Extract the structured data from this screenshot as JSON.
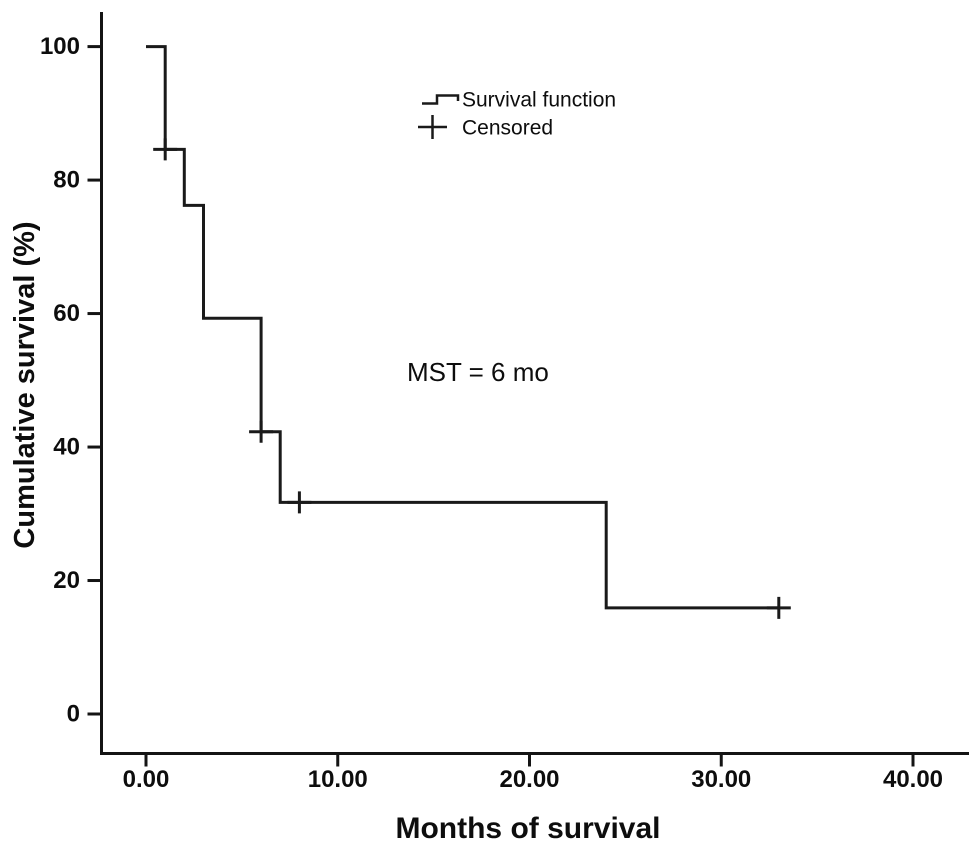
{
  "chart_data": {
    "type": "line",
    "subtype": "kaplan-meier-step",
    "title": "",
    "xlabel": "Months of survival",
    "ylabel": "Cumulative survival (%)",
    "xlim": [
      0,
      43
    ],
    "ylim": [
      0,
      105
    ],
    "grid": false,
    "legend_position": "inside-upper-middle",
    "x_ticks": [
      {
        "v": 0,
        "label": "0.00"
      },
      {
        "v": 10,
        "label": "10.00"
      },
      {
        "v": 20,
        "label": "20.00"
      },
      {
        "v": 30,
        "label": "30.00"
      },
      {
        "v": 40,
        "label": "40.00"
      }
    ],
    "y_ticks": [
      {
        "v": 0,
        "label": "0"
      },
      {
        "v": 20,
        "label": "20"
      },
      {
        "v": 40,
        "label": "40"
      },
      {
        "v": 60,
        "label": "60"
      },
      {
        "v": 80,
        "label": "80"
      },
      {
        "v": 100,
        "label": "100"
      }
    ],
    "series": [
      {
        "name": "Survival function",
        "type": "step",
        "color": "#1a1a1a",
        "points": [
          [
            0,
            100
          ],
          [
            1,
            100
          ],
          [
            1,
            84.6
          ],
          [
            2,
            84.6
          ],
          [
            2,
            76.2
          ],
          [
            3,
            76.2
          ],
          [
            3,
            59.3
          ],
          [
            6,
            59.3
          ],
          [
            6,
            42.3
          ],
          [
            7,
            42.3
          ],
          [
            7,
            31.7
          ],
          [
            24,
            31.7
          ],
          [
            24,
            15.9
          ],
          [
            33,
            15.9
          ]
        ]
      }
    ],
    "censored": [
      [
        1,
        84.6
      ],
      [
        6,
        42.3
      ],
      [
        8,
        31.7
      ],
      [
        33,
        15.9
      ]
    ],
    "legend": [
      {
        "label": "Survival function",
        "symbol": "step-line"
      },
      {
        "label": "Censored",
        "symbol": "plus"
      }
    ],
    "annotation": {
      "text": "MST = 6 mo"
    },
    "colors": {
      "line": "#1a1a1a",
      "text": "#0d0d0d",
      "background": "#ffffff"
    }
  }
}
